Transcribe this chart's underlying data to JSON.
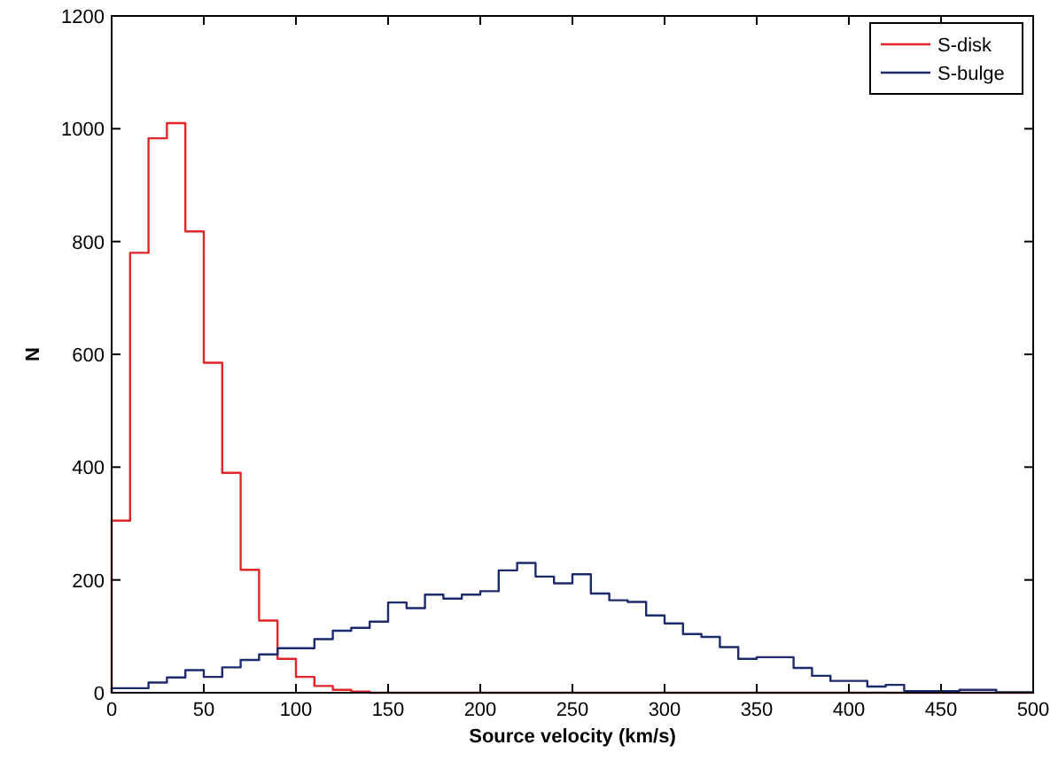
{
  "chart_data": {
    "type": "histogram",
    "xlabel": "Source velocity (km/s)",
    "ylabel": "N",
    "bins": [
      0,
      10,
      20,
      30,
      40,
      50,
      60,
      70,
      80,
      90,
      100,
      110,
      120,
      130,
      140,
      150,
      160,
      170,
      180,
      190,
      200,
      210,
      220,
      230,
      240,
      250,
      260,
      270,
      280,
      290,
      300,
      310,
      320,
      330,
      340,
      350,
      360,
      370,
      380,
      390,
      400,
      410,
      420,
      430,
      440,
      450,
      460,
      470,
      480,
      490,
      500
    ],
    "series": [
      {
        "name": "S-disk",
        "color": "#e0262b",
        "values": [
          305,
          780,
          983,
          1010,
          818,
          585,
          390,
          218,
          128,
          60,
          28,
          12,
          5,
          2,
          0,
          0,
          0,
          0,
          0,
          0,
          0,
          0,
          0,
          0,
          0,
          0,
          0,
          0,
          0,
          0,
          0,
          0,
          0,
          0,
          0,
          0,
          0,
          0,
          0,
          0,
          0,
          0,
          0,
          0,
          0,
          0,
          0,
          0,
          0,
          0
        ]
      },
      {
        "name": "S-bulge",
        "color": "#1c2a6e",
        "values": [
          8,
          8,
          18,
          27,
          40,
          28,
          45,
          58,
          68,
          79,
          79,
          95,
          110,
          115,
          126,
          160,
          150,
          174,
          167,
          174,
          180,
          217,
          230,
          206,
          194,
          210,
          176,
          164,
          161,
          137,
          123,
          104,
          99,
          81,
          60,
          63,
          63,
          44,
          30,
          21,
          21,
          11,
          14,
          3,
          3,
          3,
          5,
          5,
          1,
          1
        ]
      }
    ],
    "xlim": [
      0,
      500
    ],
    "ylim": [
      0,
      1200
    ],
    "xticks": [
      0,
      50,
      100,
      150,
      200,
      250,
      300,
      350,
      400,
      450,
      500
    ],
    "yticks": [
      0,
      200,
      400,
      600,
      800,
      1000,
      1200
    ],
    "legend": "top right",
    "grid": false
  }
}
